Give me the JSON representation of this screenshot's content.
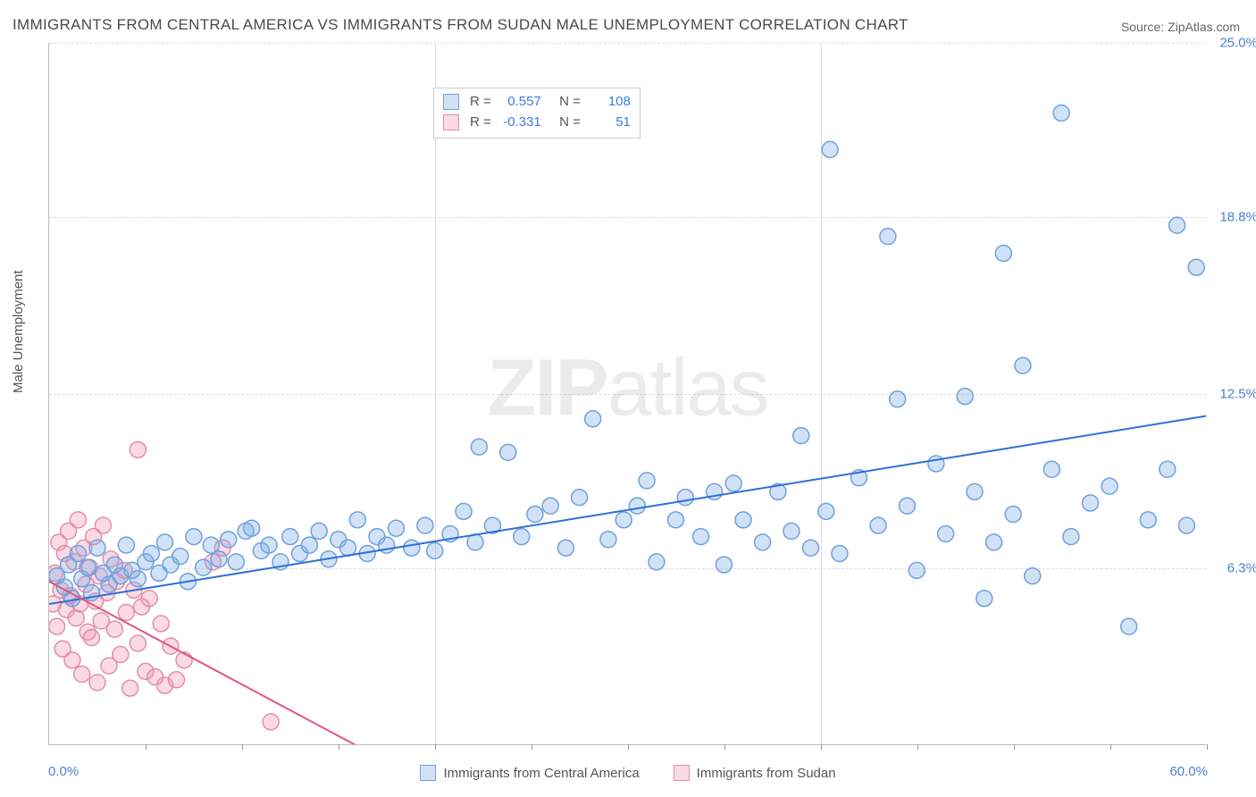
{
  "title": "IMMIGRANTS FROM CENTRAL AMERICA VS IMMIGRANTS FROM SUDAN MALE UNEMPLOYMENT CORRELATION CHART",
  "source": "Source: ZipAtlas.com",
  "ylabel": "Male Unemployment",
  "watermark_part1": "ZIP",
  "watermark_part2": "atlas",
  "chart": {
    "type": "scatter",
    "xlim": [
      0,
      60
    ],
    "ylim": [
      0,
      25
    ],
    "xtick_label_left": "0.0%",
    "xtick_label_right": "60.0%",
    "ytick_labels": [
      "6.3%",
      "12.5%",
      "18.8%",
      "25.0%"
    ],
    "ytick_values": [
      6.3,
      12.5,
      18.8,
      25.0
    ],
    "xtick_minor": [
      5,
      10,
      15,
      20,
      25,
      30,
      35,
      40,
      45,
      50,
      55,
      60
    ],
    "xgrid_major": [
      20,
      40
    ],
    "background_color": "#ffffff",
    "grid_color": "#dddddd",
    "marker_radius": 9,
    "marker_stroke_width": 1.5,
    "trend_stroke_width": 2
  },
  "series": [
    {
      "name": "Immigrants from Central America",
      "fill": "rgba(122,172,232,0.35)",
      "stroke": "#6fa1db",
      "trend_color": "#2f6fd6",
      "R": "0.557",
      "N": "108",
      "trend": {
        "x1": 0,
        "y1": 5.0,
        "x2": 60,
        "y2": 11.7
      },
      "points": [
        [
          0.4,
          6.0
        ],
        [
          0.8,
          5.6
        ],
        [
          1.0,
          6.4
        ],
        [
          1.2,
          5.2
        ],
        [
          1.5,
          6.8
        ],
        [
          1.7,
          5.9
        ],
        [
          2.0,
          6.3
        ],
        [
          2.2,
          5.4
        ],
        [
          2.5,
          7.0
        ],
        [
          2.8,
          6.1
        ],
        [
          3.1,
          5.7
        ],
        [
          3.4,
          6.4
        ],
        [
          3.7,
          6.0
        ],
        [
          4.0,
          7.1
        ],
        [
          4.3,
          6.2
        ],
        [
          4.6,
          5.9
        ],
        [
          5.0,
          6.5
        ],
        [
          5.3,
          6.8
        ],
        [
          5.7,
          6.1
        ],
        [
          6.0,
          7.2
        ],
        [
          6.3,
          6.4
        ],
        [
          6.8,
          6.7
        ],
        [
          7.2,
          5.8
        ],
        [
          7.5,
          7.4
        ],
        [
          8.0,
          6.3
        ],
        [
          8.4,
          7.1
        ],
        [
          8.8,
          6.6
        ],
        [
          9.3,
          7.3
        ],
        [
          9.7,
          6.5
        ],
        [
          10.2,
          7.6
        ],
        [
          10.5,
          7.7
        ],
        [
          11.0,
          6.9
        ],
        [
          11.4,
          7.1
        ],
        [
          12.0,
          6.5
        ],
        [
          12.5,
          7.4
        ],
        [
          13.0,
          6.8
        ],
        [
          13.5,
          7.1
        ],
        [
          14.0,
          7.6
        ],
        [
          14.5,
          6.6
        ],
        [
          15.0,
          7.3
        ],
        [
          15.5,
          7.0
        ],
        [
          16.0,
          8.0
        ],
        [
          16.5,
          6.8
        ],
        [
          17.0,
          7.4
        ],
        [
          17.5,
          7.1
        ],
        [
          18.0,
          7.7
        ],
        [
          18.8,
          7.0
        ],
        [
          19.5,
          7.8
        ],
        [
          20.0,
          6.9
        ],
        [
          20.8,
          7.5
        ],
        [
          21.5,
          8.3
        ],
        [
          22.1,
          7.2
        ],
        [
          22.3,
          10.6
        ],
        [
          23.0,
          7.8
        ],
        [
          23.8,
          10.4
        ],
        [
          24.5,
          7.4
        ],
        [
          25.2,
          8.2
        ],
        [
          26.0,
          8.5
        ],
        [
          26.8,
          7.0
        ],
        [
          27.5,
          8.8
        ],
        [
          28.2,
          11.6
        ],
        [
          29.0,
          7.3
        ],
        [
          29.8,
          8.0
        ],
        [
          30.5,
          8.5
        ],
        [
          31.0,
          9.4
        ],
        [
          31.5,
          6.5
        ],
        [
          32.5,
          8.0
        ],
        [
          33.0,
          8.8
        ],
        [
          33.8,
          7.4
        ],
        [
          34.5,
          9.0
        ],
        [
          35.0,
          6.4
        ],
        [
          35.5,
          9.3
        ],
        [
          36.0,
          8.0
        ],
        [
          37.0,
          7.2
        ],
        [
          37.8,
          9.0
        ],
        [
          38.5,
          7.6
        ],
        [
          39.0,
          11.0
        ],
        [
          39.5,
          7.0
        ],
        [
          40.3,
          8.3
        ],
        [
          40.5,
          21.2
        ],
        [
          41.0,
          6.8
        ],
        [
          42.0,
          9.5
        ],
        [
          43.0,
          7.8
        ],
        [
          43.5,
          18.1
        ],
        [
          44.0,
          12.3
        ],
        [
          44.5,
          8.5
        ],
        [
          45.0,
          6.2
        ],
        [
          46.0,
          10.0
        ],
        [
          46.5,
          7.5
        ],
        [
          47.5,
          12.4
        ],
        [
          48.0,
          9.0
        ],
        [
          48.5,
          5.2
        ],
        [
          49.0,
          7.2
        ],
        [
          49.5,
          17.5
        ],
        [
          50.0,
          8.2
        ],
        [
          50.5,
          13.5
        ],
        [
          51.0,
          6.0
        ],
        [
          52.0,
          9.8
        ],
        [
          52.5,
          22.5
        ],
        [
          53.0,
          7.4
        ],
        [
          54.0,
          8.6
        ],
        [
          55.0,
          9.2
        ],
        [
          56.0,
          4.2
        ],
        [
          57.0,
          8.0
        ],
        [
          58.0,
          9.8
        ],
        [
          58.5,
          18.5
        ],
        [
          59.0,
          7.8
        ],
        [
          59.5,
          17.0
        ]
      ]
    },
    {
      "name": "Immigrants from Sudan",
      "fill": "rgba(240,150,175,0.35)",
      "stroke": "#e38fa7",
      "trend_color": "#e0567f",
      "R": "-0.331",
      "N": "51",
      "trend": {
        "x1": 0,
        "y1": 5.8,
        "x2": 18,
        "y2": -0.8
      },
      "points": [
        [
          0.2,
          5.0
        ],
        [
          0.3,
          6.1
        ],
        [
          0.4,
          4.2
        ],
        [
          0.5,
          7.2
        ],
        [
          0.6,
          5.5
        ],
        [
          0.7,
          3.4
        ],
        [
          0.8,
          6.8
        ],
        [
          0.9,
          4.8
        ],
        [
          1.0,
          7.6
        ],
        [
          1.1,
          5.3
        ],
        [
          1.2,
          3.0
        ],
        [
          1.3,
          6.5
        ],
        [
          1.4,
          4.5
        ],
        [
          1.5,
          8.0
        ],
        [
          1.6,
          5.0
        ],
        [
          1.7,
          2.5
        ],
        [
          1.8,
          7.0
        ],
        [
          1.9,
          5.7
        ],
        [
          2.0,
          4.0
        ],
        [
          2.1,
          6.3
        ],
        [
          2.2,
          3.8
        ],
        [
          2.3,
          7.4
        ],
        [
          2.4,
          5.1
        ],
        [
          2.5,
          2.2
        ],
        [
          2.6,
          6.0
        ],
        [
          2.7,
          4.4
        ],
        [
          2.8,
          7.8
        ],
        [
          3.0,
          5.4
        ],
        [
          3.1,
          2.8
        ],
        [
          3.2,
          6.6
        ],
        [
          3.4,
          4.1
        ],
        [
          3.5,
          5.8
        ],
        [
          3.7,
          3.2
        ],
        [
          3.9,
          6.2
        ],
        [
          4.0,
          4.7
        ],
        [
          4.2,
          2.0
        ],
        [
          4.4,
          5.5
        ],
        [
          4.6,
          3.6
        ],
        [
          4.6,
          10.5
        ],
        [
          4.8,
          4.9
        ],
        [
          5.0,
          2.6
        ],
        [
          5.2,
          5.2
        ],
        [
          5.5,
          2.4
        ],
        [
          5.8,
          4.3
        ],
        [
          6.0,
          2.1
        ],
        [
          6.3,
          3.5
        ],
        [
          6.6,
          2.3
        ],
        [
          7.0,
          3.0
        ],
        [
          8.5,
          6.5
        ],
        [
          9.0,
          7.0
        ],
        [
          11.5,
          0.8
        ]
      ]
    }
  ],
  "legend": {
    "series1": "Immigrants from Central America",
    "series2": "Immigrants from Sudan"
  }
}
